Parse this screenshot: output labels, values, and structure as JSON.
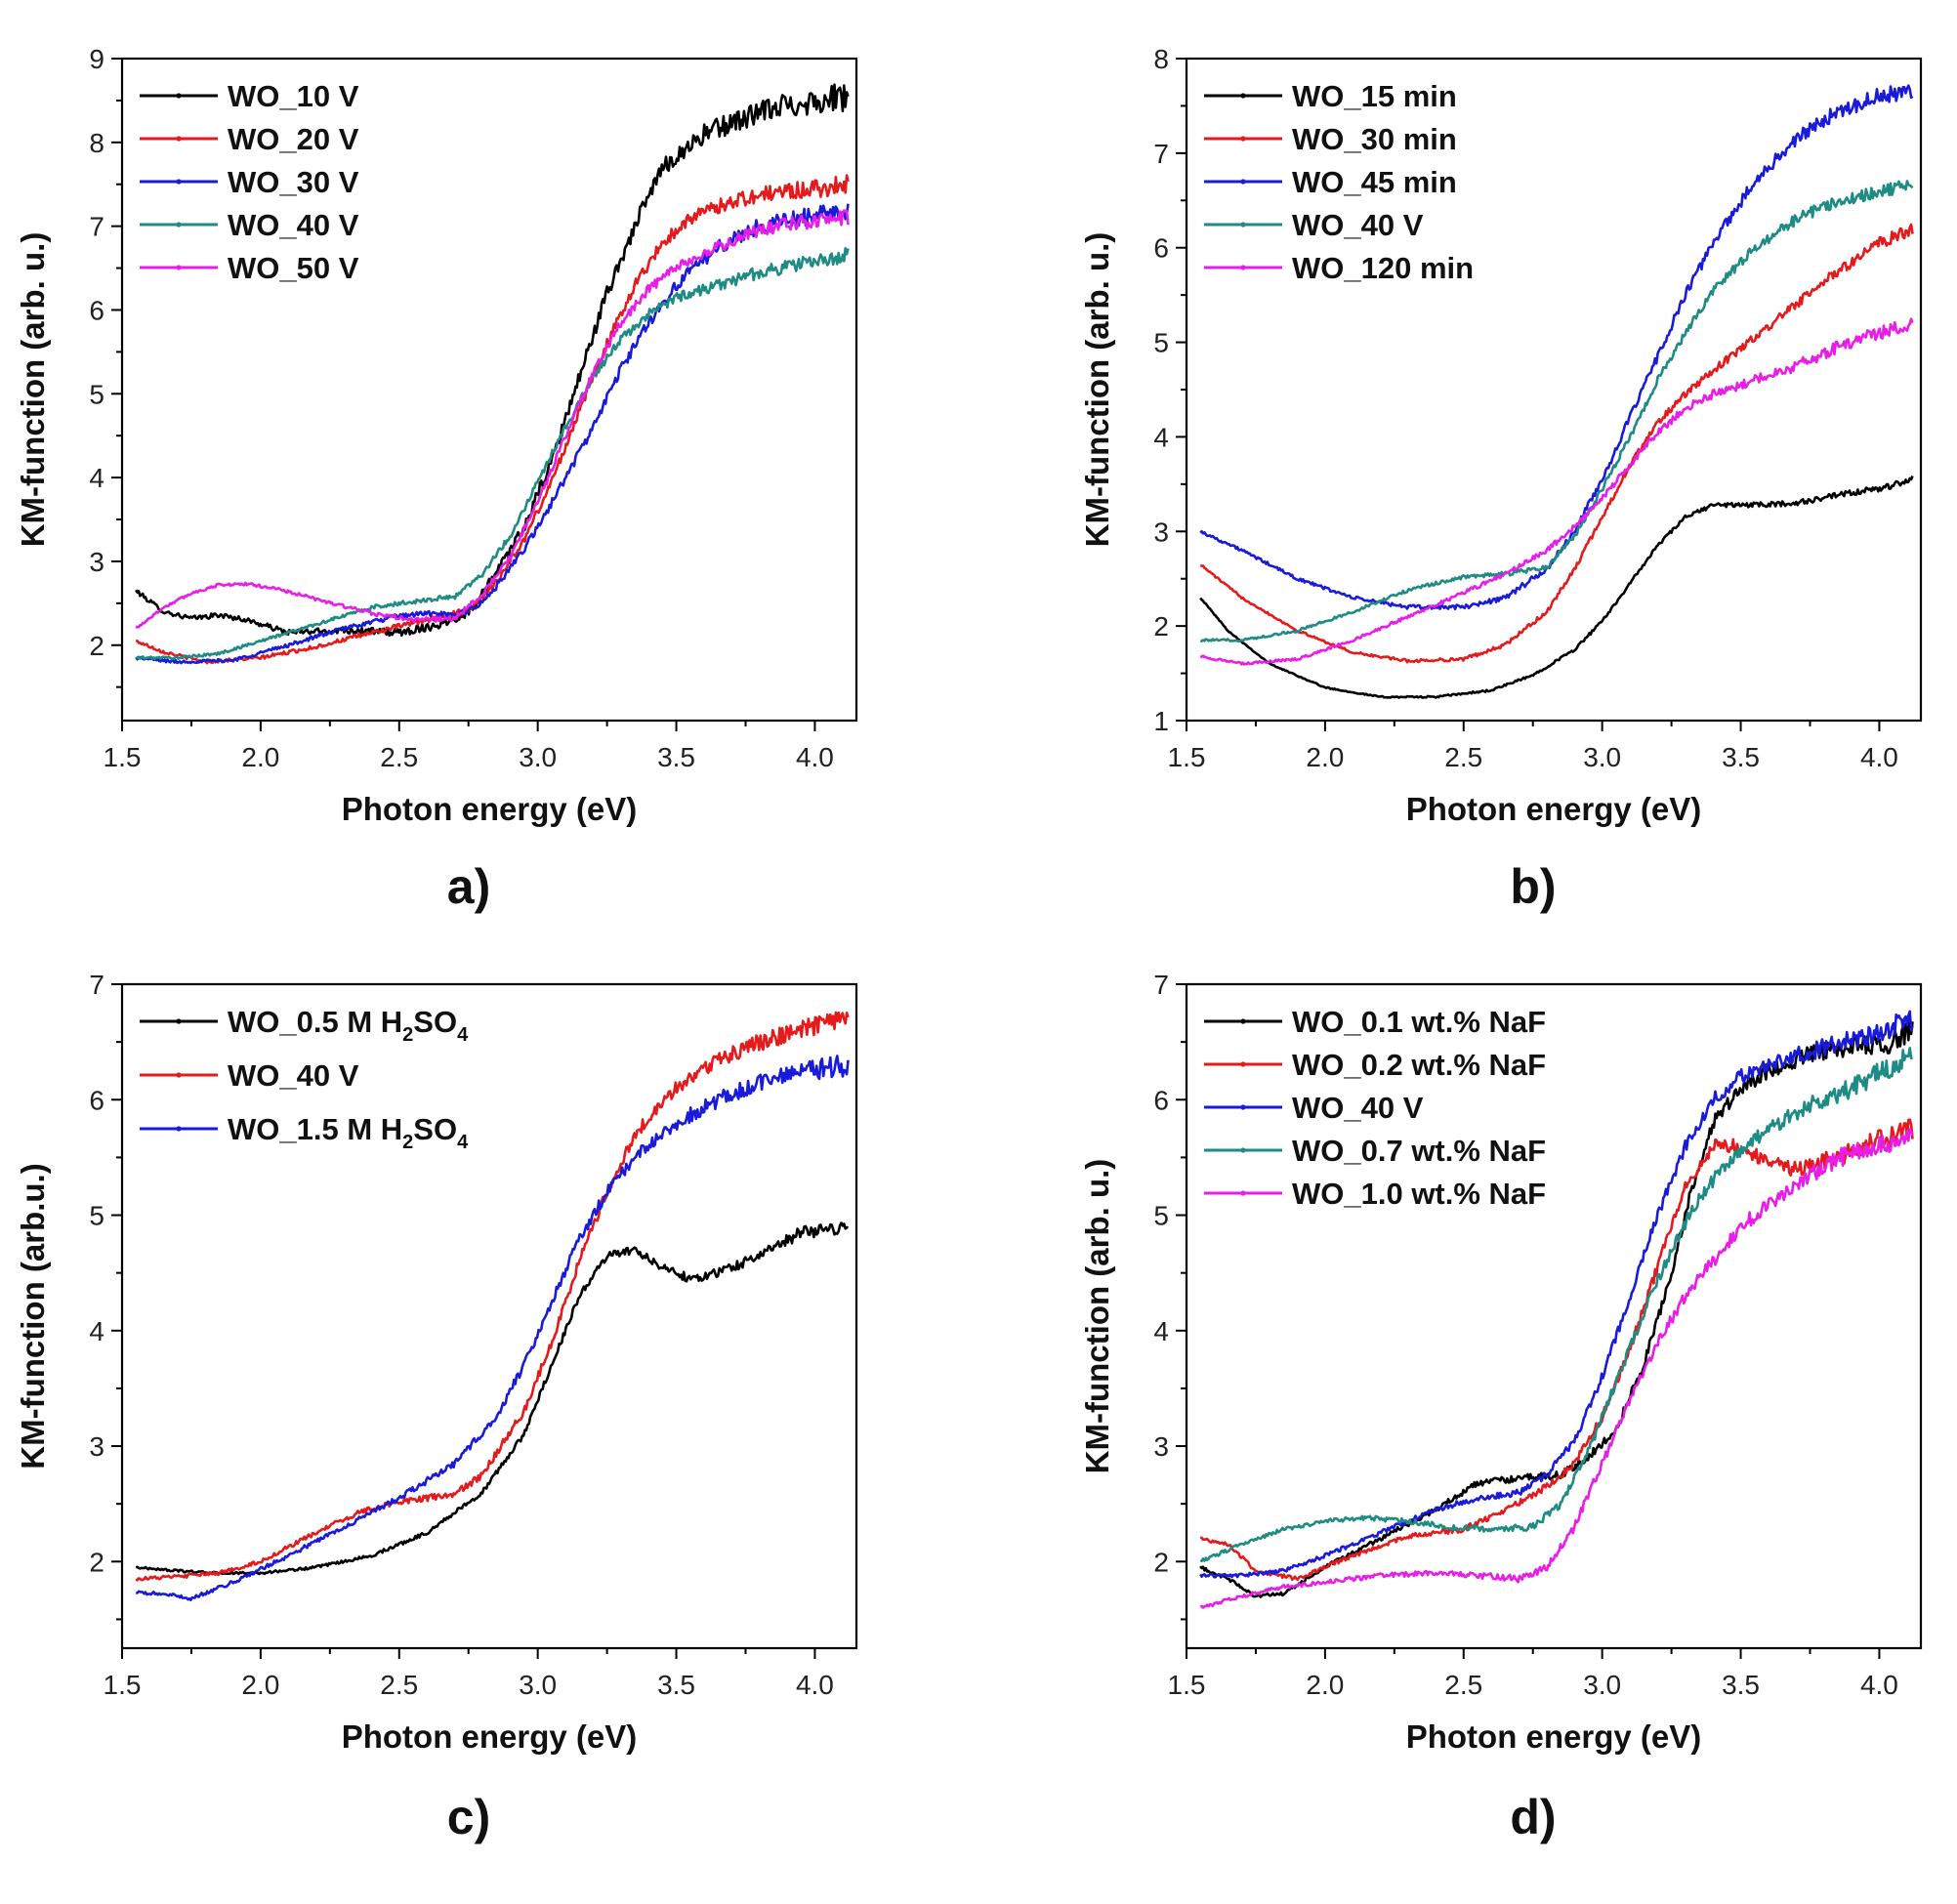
{
  "chart_data": [
    {
      "type": "line",
      "panel_label": "a)",
      "xlabel": "Photon energy (eV)",
      "ylabel": "KM-function (arb. u.)",
      "xlim": [
        1.5,
        4.15
      ],
      "ylim": [
        1.1,
        9.0
      ],
      "xticks": [
        "1.5",
        "2.0",
        "2.5",
        "3.0",
        "3.5",
        "4.0"
      ],
      "yticks": [
        "2",
        "3",
        "4",
        "5",
        "6",
        "7",
        "8",
        "9"
      ],
      "legend_position": "top-left",
      "series": [
        {
          "name": "WO_10 V",
          "color": "#000000",
          "noise": 0.18,
          "x": [
            1.55,
            1.65,
            1.75,
            1.85,
            1.95,
            2.1,
            2.3,
            2.5,
            2.65,
            2.75,
            2.85,
            2.95,
            3.05,
            3.15,
            3.25,
            3.35,
            3.45,
            3.6,
            3.75,
            3.9,
            4.12
          ],
          "y": [
            2.65,
            2.4,
            2.32,
            2.36,
            2.3,
            2.15,
            2.18,
            2.15,
            2.25,
            2.4,
            2.85,
            3.4,
            4.2,
            5.2,
            6.2,
            7.0,
            7.7,
            8.1,
            8.3,
            8.45,
            8.55
          ]
        },
        {
          "name": "WO_20 V",
          "color": "#e41a1c",
          "noise": 0.12,
          "x": [
            1.55,
            1.65,
            1.8,
            2.0,
            2.2,
            2.4,
            2.6,
            2.75,
            2.85,
            2.95,
            3.05,
            3.15,
            3.25,
            3.35,
            3.45,
            3.55,
            3.7,
            3.85,
            4.0,
            4.12
          ],
          "y": [
            2.05,
            1.92,
            1.8,
            1.85,
            1.98,
            2.15,
            2.3,
            2.42,
            2.75,
            3.25,
            3.95,
            4.8,
            5.6,
            6.3,
            6.8,
            7.1,
            7.3,
            7.4,
            7.45,
            7.5
          ]
        },
        {
          "name": "WO_30 V",
          "color": "#1a1adb",
          "noise": 0.12,
          "x": [
            1.55,
            1.7,
            1.9,
            2.1,
            2.3,
            2.5,
            2.6,
            2.7,
            2.8,
            2.9,
            3.0,
            3.1,
            3.2,
            3.3,
            3.4,
            3.5,
            3.65,
            3.8,
            3.95,
            4.12
          ],
          "y": [
            1.85,
            1.8,
            1.82,
            2.0,
            2.2,
            2.35,
            2.38,
            2.35,
            2.5,
            2.9,
            3.4,
            4.0,
            4.6,
            5.3,
            5.85,
            6.3,
            6.75,
            7.0,
            7.1,
            7.2
          ]
        },
        {
          "name": "WO_40 V",
          "color": "#1e8b84",
          "noise": 0.1,
          "x": [
            1.55,
            1.7,
            1.85,
            2.0,
            2.2,
            2.4,
            2.55,
            2.7,
            2.8,
            2.9,
            3.0,
            3.1,
            3.2,
            3.3,
            3.4,
            3.5,
            3.65,
            3.8,
            3.95,
            4.12
          ],
          "y": [
            1.85,
            1.85,
            1.9,
            2.05,
            2.25,
            2.45,
            2.52,
            2.58,
            2.85,
            3.3,
            3.95,
            4.6,
            5.2,
            5.65,
            5.95,
            6.15,
            6.3,
            6.45,
            6.55,
            6.65
          ]
        },
        {
          "name": "WO_50 V",
          "color": "#e81ee8",
          "noise": 0.1,
          "x": [
            1.55,
            1.65,
            1.75,
            1.85,
            1.95,
            2.05,
            2.2,
            2.4,
            2.55,
            2.7,
            2.8,
            2.9,
            3.0,
            3.1,
            3.2,
            3.3,
            3.4,
            3.5,
            3.65,
            3.8,
            3.95,
            4.12
          ],
          "y": [
            2.2,
            2.45,
            2.62,
            2.72,
            2.73,
            2.68,
            2.55,
            2.38,
            2.3,
            2.32,
            2.6,
            3.05,
            3.7,
            4.5,
            5.25,
            5.85,
            6.25,
            6.5,
            6.75,
            6.95,
            7.05,
            7.1
          ]
        }
      ]
    },
    {
      "type": "line",
      "panel_label": "b)",
      "xlabel": "Photon energy (eV)",
      "ylabel": "KM-function (arb. u.)",
      "xlim": [
        1.5,
        4.15
      ],
      "ylim": [
        1.0,
        8.0
      ],
      "xticks": [
        "1.5",
        "2.0",
        "2.5",
        "3.0",
        "3.5",
        "4.0"
      ],
      "yticks": [
        "1",
        "2",
        "3",
        "4",
        "5",
        "6",
        "7",
        "8"
      ],
      "legend_position": "top-left",
      "series": [
        {
          "name": "WO_15 min",
          "color": "#000000",
          "noise": 0.04,
          "x": [
            1.55,
            1.65,
            1.8,
            2.0,
            2.2,
            2.4,
            2.6,
            2.75,
            2.9,
            3.0,
            3.1,
            3.2,
            3.3,
            3.4,
            3.55,
            3.7,
            3.85,
            4.0,
            4.12
          ],
          "y": [
            2.3,
            1.95,
            1.6,
            1.35,
            1.25,
            1.25,
            1.32,
            1.48,
            1.75,
            2.05,
            2.45,
            2.85,
            3.15,
            3.28,
            3.28,
            3.3,
            3.38,
            3.45,
            3.55
          ]
        },
        {
          "name": "WO_30 min",
          "color": "#e41a1c",
          "noise": 0.07,
          "x": [
            1.55,
            1.7,
            1.9,
            2.1,
            2.3,
            2.5,
            2.65,
            2.8,
            2.9,
            3.0,
            3.1,
            3.2,
            3.3,
            3.4,
            3.55,
            3.7,
            3.85,
            4.0,
            4.12
          ],
          "y": [
            2.65,
            2.3,
            1.95,
            1.72,
            1.63,
            1.65,
            1.8,
            2.15,
            2.6,
            3.15,
            3.7,
            4.15,
            4.45,
            4.7,
            5.05,
            5.4,
            5.75,
            6.05,
            6.2
          ]
        },
        {
          "name": "WO_45 min",
          "color": "#1a1adb",
          "noise": 0.1,
          "x": [
            1.55,
            1.7,
            1.9,
            2.1,
            2.3,
            2.5,
            2.65,
            2.8,
            2.9,
            3.0,
            3.1,
            3.2,
            3.3,
            3.4,
            3.55,
            3.7,
            3.85,
            4.0,
            4.12
          ],
          "y": [
            3.0,
            2.8,
            2.5,
            2.3,
            2.2,
            2.2,
            2.3,
            2.6,
            3.0,
            3.55,
            4.2,
            4.85,
            5.5,
            6.05,
            6.7,
            7.15,
            7.45,
            7.6,
            7.65
          ]
        },
        {
          "name": "WO_40 V",
          "color": "#1e8b84",
          "noise": 0.08,
          "x": [
            1.55,
            1.7,
            1.9,
            2.1,
            2.3,
            2.5,
            2.65,
            2.8,
            2.9,
            3.0,
            3.1,
            3.2,
            3.3,
            3.4,
            3.55,
            3.7,
            3.85,
            4.0,
            4.12
          ],
          "y": [
            1.85,
            1.85,
            1.95,
            2.15,
            2.38,
            2.52,
            2.55,
            2.62,
            2.95,
            3.45,
            4.0,
            4.6,
            5.1,
            5.55,
            6.0,
            6.3,
            6.5,
            6.6,
            6.65
          ]
        },
        {
          "name": "WO_120 min",
          "color": "#e81ee8",
          "noise": 0.08,
          "x": [
            1.55,
            1.7,
            1.9,
            2.1,
            2.3,
            2.5,
            2.65,
            2.8,
            2.9,
            3.0,
            3.1,
            3.2,
            3.3,
            3.4,
            3.55,
            3.7,
            3.85,
            4.0,
            4.12
          ],
          "y": [
            1.68,
            1.6,
            1.65,
            1.85,
            2.1,
            2.35,
            2.55,
            2.8,
            3.05,
            3.35,
            3.7,
            4.05,
            4.3,
            4.45,
            4.6,
            4.75,
            4.95,
            5.1,
            5.2
          ]
        }
      ]
    },
    {
      "type": "line",
      "panel_label": "c)",
      "xlabel": "Photon energy (eV)",
      "ylabel": "KM-function (arb.u.)",
      "xlim": [
        1.5,
        4.15
      ],
      "ylim": [
        1.25,
        7.0
      ],
      "xticks": [
        "1.5",
        "2.0",
        "2.5",
        "3.0",
        "3.5",
        "4.0"
      ],
      "yticks": [
        "2",
        "3",
        "4",
        "5",
        "6",
        "7"
      ],
      "legend_position": "top-left",
      "series": [
        {
          "name": "WO_0.5 M H2SO4",
          "label_main": "WO_0.5 M H",
          "sub1": "2",
          "label_mid": "SO",
          "sub2": "4",
          "color": "#000000",
          "noise": 0.06,
          "x": [
            1.55,
            1.7,
            1.85,
            2.0,
            2.2,
            2.4,
            2.6,
            2.8,
            2.95,
            3.05,
            3.15,
            3.25,
            3.35,
            3.45,
            3.55,
            3.65,
            3.8,
            3.95,
            4.12
          ],
          "y": [
            1.95,
            1.92,
            1.9,
            1.9,
            1.95,
            2.05,
            2.25,
            2.6,
            3.1,
            3.7,
            4.3,
            4.65,
            4.7,
            4.55,
            4.45,
            4.5,
            4.65,
            4.85,
            4.9
          ]
        },
        {
          "name": "WO_40 V",
          "color": "#e41a1c",
          "noise": 0.1,
          "x": [
            1.55,
            1.7,
            1.85,
            2.0,
            2.2,
            2.35,
            2.5,
            2.6,
            2.7,
            2.8,
            2.95,
            3.05,
            3.15,
            3.25,
            3.35,
            3.5,
            3.65,
            3.8,
            3.95,
            4.12
          ],
          "y": [
            1.85,
            1.87,
            1.9,
            2.0,
            2.25,
            2.42,
            2.52,
            2.55,
            2.58,
            2.75,
            3.3,
            3.9,
            4.6,
            5.2,
            5.7,
            6.1,
            6.35,
            6.5,
            6.6,
            6.7
          ]
        },
        {
          "name": "WO_1.5 M H2SO4",
          "label_main": "WO_1.5 M H",
          "sub1": "2",
          "label_mid": "SO",
          "sub2": "4",
          "color": "#1a1adb",
          "noise": 0.1,
          "x": [
            1.55,
            1.65,
            1.75,
            1.9,
            2.1,
            2.3,
            2.5,
            2.7,
            2.85,
            2.95,
            3.05,
            3.15,
            3.25,
            3.35,
            3.5,
            3.65,
            3.8,
            3.95,
            4.12
          ],
          "y": [
            1.73,
            1.72,
            1.68,
            1.82,
            2.05,
            2.3,
            2.55,
            2.85,
            3.25,
            3.7,
            4.25,
            4.8,
            5.2,
            5.5,
            5.8,
            6.0,
            6.15,
            6.25,
            6.3
          ]
        }
      ]
    },
    {
      "type": "line",
      "panel_label": "d)",
      "xlabel": "Photon energy (eV)",
      "ylabel": "KM-function (arb. u.)",
      "xlim": [
        1.5,
        4.15
      ],
      "ylim": [
        1.25,
        7.0
      ],
      "xticks": [
        "1.5",
        "2.0",
        "2.5",
        "3.0",
        "3.5",
        "4.0"
      ],
      "yticks": [
        "2",
        "3",
        "4",
        "5",
        "6",
        "7"
      ],
      "legend_position": "top-left",
      "series": [
        {
          "name": "WO_0.1 wt.% NaF",
          "color": "#000000",
          "noise": 0.1,
          "x": [
            1.55,
            1.65,
            1.75,
            1.85,
            2.0,
            2.2,
            2.4,
            2.55,
            2.7,
            2.85,
            2.95,
            3.05,
            3.15,
            3.25,
            3.32,
            3.4,
            3.5,
            3.6,
            3.75,
            3.9,
            4.05,
            4.12
          ],
          "y": [
            1.95,
            1.85,
            1.7,
            1.72,
            1.95,
            2.2,
            2.45,
            2.68,
            2.72,
            2.75,
            2.9,
            3.15,
            3.7,
            4.5,
            5.2,
            5.8,
            6.1,
            6.25,
            6.4,
            6.45,
            6.5,
            6.6
          ]
        },
        {
          "name": "WO_0.2 wt.% NaF",
          "color": "#e41a1c",
          "noise": 0.1,
          "x": [
            1.55,
            1.65,
            1.75,
            1.9,
            2.1,
            2.3,
            2.5,
            2.65,
            2.8,
            2.9,
            3.0,
            3.1,
            3.2,
            3.3,
            3.4,
            3.5,
            3.6,
            3.7,
            3.85,
            4.0,
            4.12
          ],
          "y": [
            2.2,
            2.15,
            1.92,
            1.85,
            2.05,
            2.22,
            2.28,
            2.45,
            2.65,
            2.85,
            3.25,
            3.85,
            4.55,
            5.25,
            5.6,
            5.6,
            5.45,
            5.4,
            5.5,
            5.65,
            5.75
          ]
        },
        {
          "name": "WO_40 V",
          "color": "#1a1adb",
          "noise": 0.1,
          "x": [
            1.55,
            1.7,
            1.85,
            2.0,
            2.2,
            2.4,
            2.55,
            2.7,
            2.8,
            2.9,
            3.0,
            3.1,
            3.2,
            3.3,
            3.4,
            3.5,
            3.65,
            3.8,
            3.95,
            4.12
          ],
          "y": [
            1.88,
            1.88,
            1.92,
            2.05,
            2.25,
            2.45,
            2.55,
            2.6,
            2.75,
            3.05,
            3.6,
            4.3,
            5.0,
            5.6,
            6.0,
            6.2,
            6.35,
            6.45,
            6.55,
            6.7
          ]
        },
        {
          "name": "WO_0.7 wt.% NaF",
          "color": "#1e8b84",
          "noise": 0.1,
          "x": [
            1.55,
            1.7,
            1.85,
            2.0,
            2.15,
            2.3,
            2.45,
            2.6,
            2.75,
            2.85,
            2.95,
            3.05,
            3.15,
            3.25,
            3.35,
            3.45,
            3.6,
            3.75,
            3.9,
            4.05,
            4.12
          ],
          "y": [
            2.0,
            2.15,
            2.28,
            2.35,
            2.38,
            2.35,
            2.3,
            2.28,
            2.3,
            2.5,
            2.95,
            3.55,
            4.15,
            4.7,
            5.15,
            5.45,
            5.75,
            5.95,
            6.1,
            6.3,
            6.4
          ]
        },
        {
          "name": "WO_1.0 wt.% NaF",
          "color": "#e81ee8",
          "noise": 0.1,
          "x": [
            1.55,
            1.7,
            1.85,
            2.0,
            2.2,
            2.4,
            2.55,
            2.7,
            2.8,
            2.9,
            3.0,
            3.1,
            3.2,
            3.3,
            3.4,
            3.5,
            3.6,
            3.75,
            3.9,
            4.05,
            4.12
          ],
          "y": [
            1.6,
            1.7,
            1.78,
            1.82,
            1.88,
            1.9,
            1.88,
            1.85,
            1.95,
            2.3,
            2.85,
            3.4,
            3.9,
            4.3,
            4.6,
            4.9,
            5.1,
            5.35,
            5.55,
            5.65,
            5.7
          ]
        }
      ]
    }
  ]
}
